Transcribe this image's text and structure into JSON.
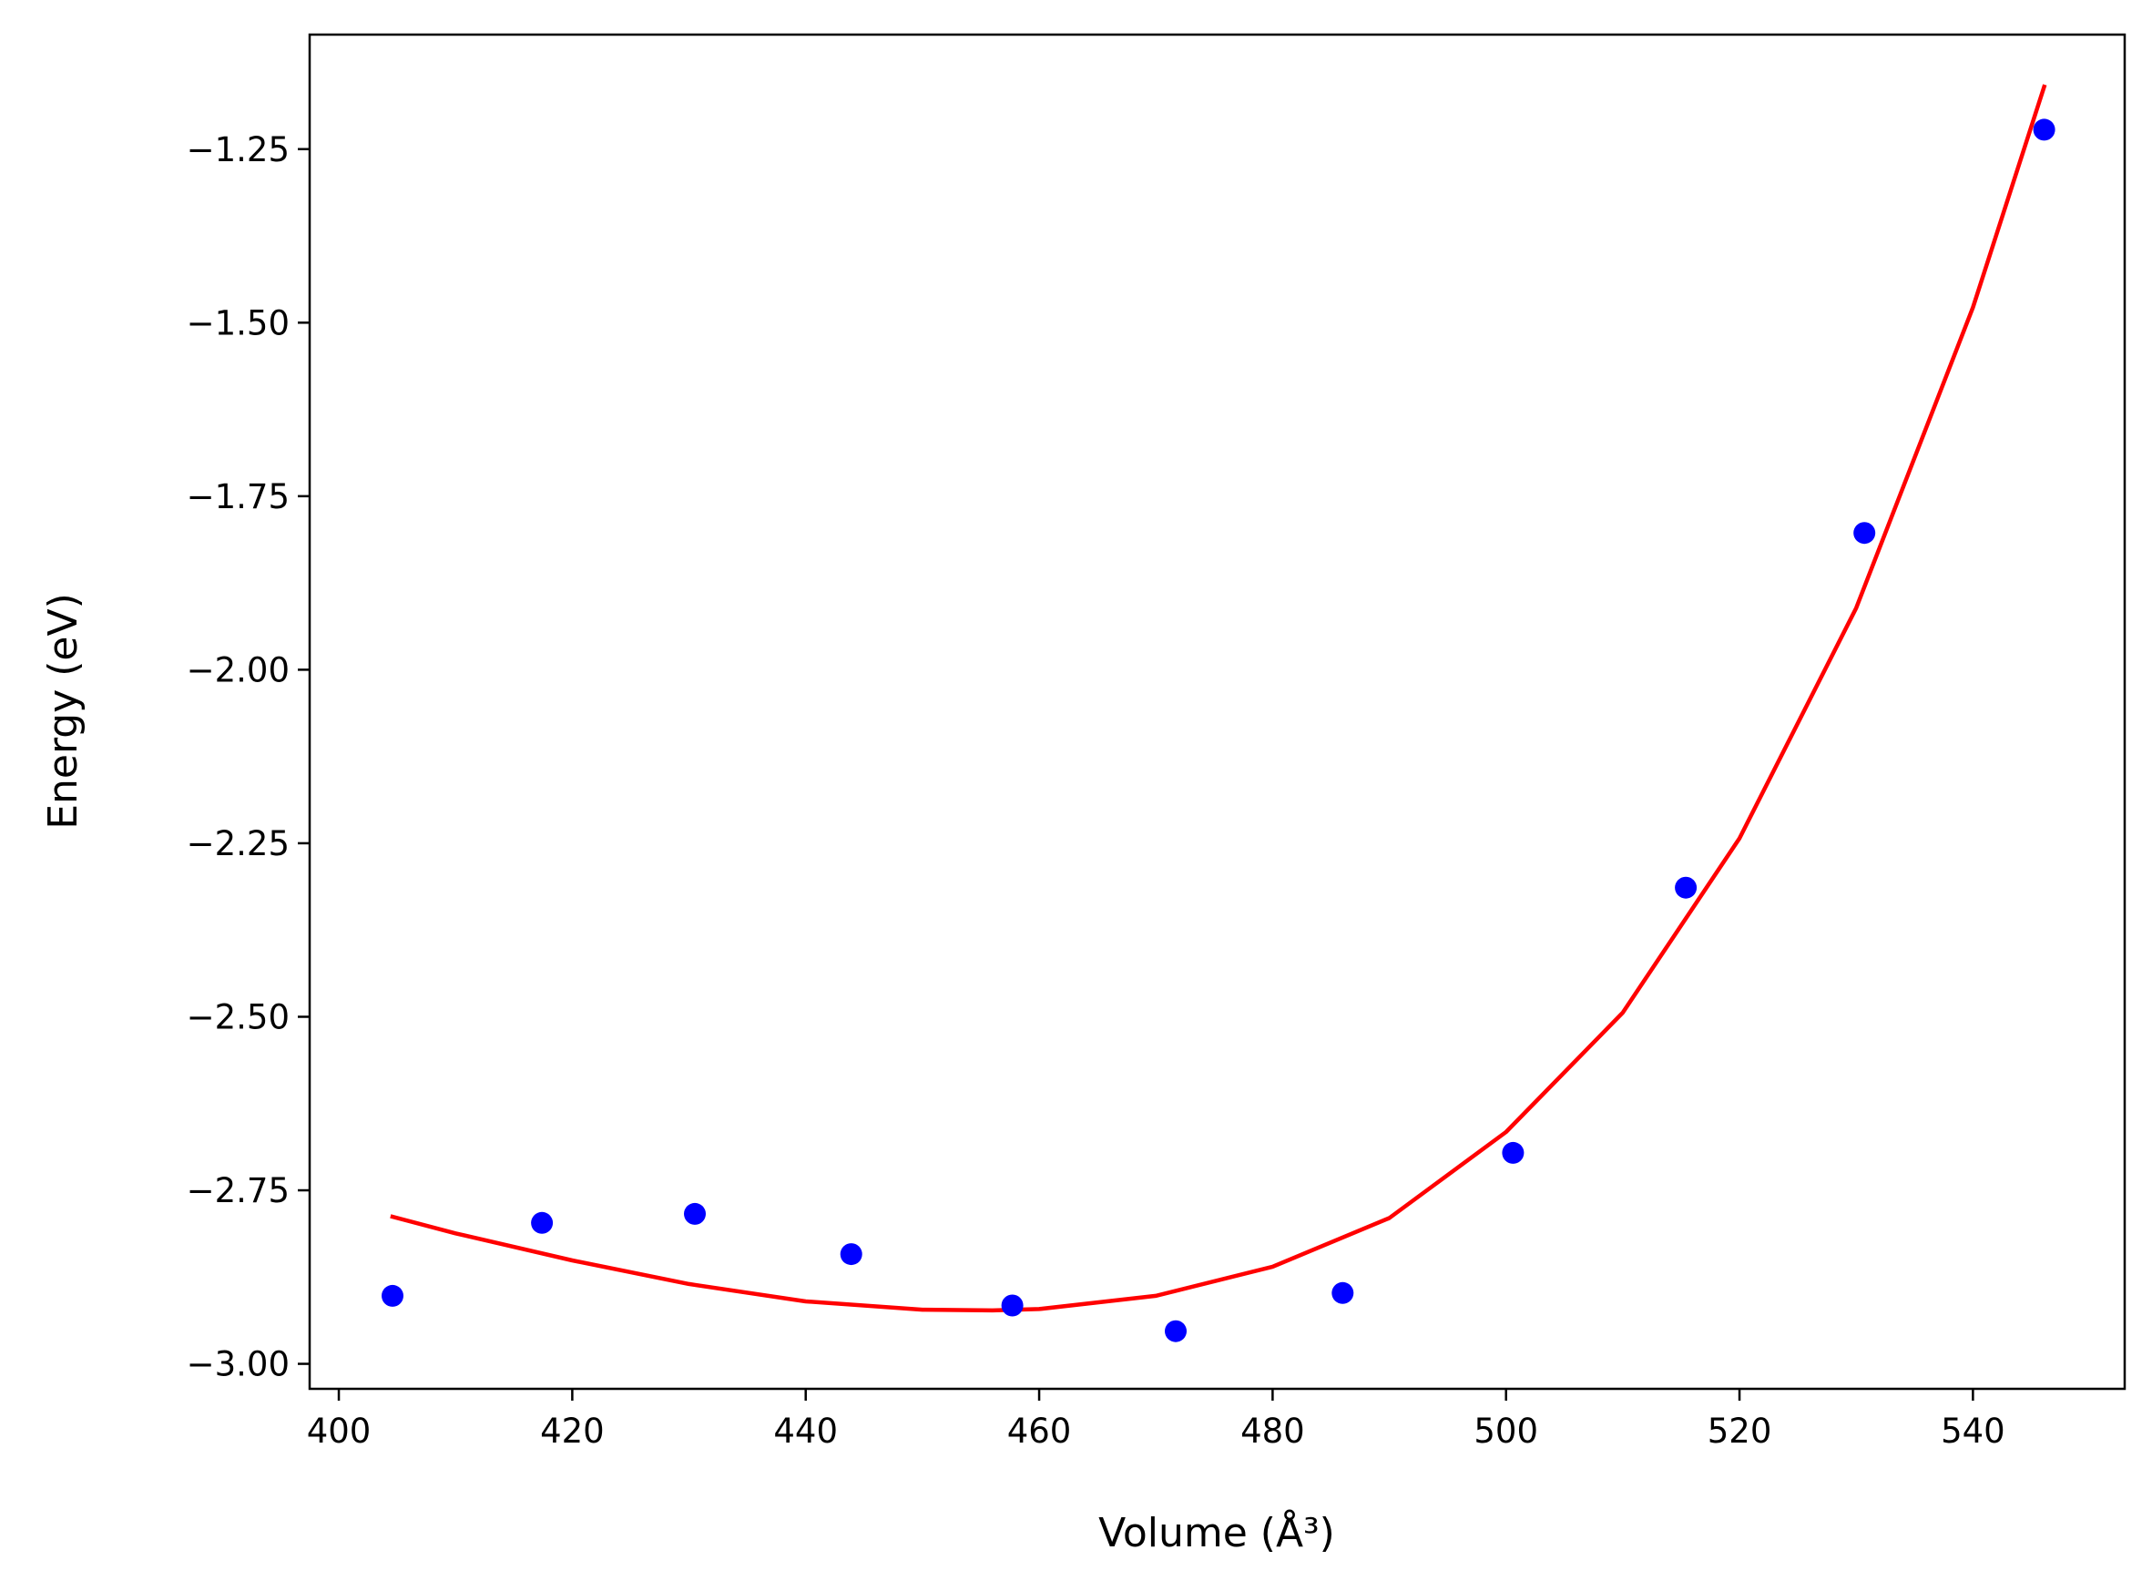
{
  "chart_data": {
    "type": "scatter",
    "title": "",
    "xlabel": "Volume (Å³)",
    "ylabel": "Energy (eV)",
    "xlim": [
      397.5,
      553.0
    ],
    "ylim": [
      -3.036,
      -1.085
    ],
    "x_ticks": [
      400,
      420,
      440,
      460,
      480,
      500,
      520,
      540
    ],
    "x_tick_labels": [
      "400",
      "420",
      "440",
      "460",
      "480",
      "500",
      "520",
      "540"
    ],
    "y_ticks": [
      -1.25,
      -1.5,
      -1.75,
      -2.0,
      -2.25,
      -2.5,
      -2.75,
      -3.0
    ],
    "y_tick_labels": [
      "−1.25",
      "−1.50",
      "−1.75",
      "−2.00",
      "−2.25",
      "−2.50",
      "−2.75",
      "−3.00"
    ],
    "grid": false,
    "legend": "none",
    "series": [
      {
        "kind": "scatter",
        "color": "#0000ff",
        "points": [
          {
            "x": 404.6,
            "y": -2.902
          },
          {
            "x": 417.4,
            "y": -2.797
          },
          {
            "x": 430.5,
            "y": -2.784
          },
          {
            "x": 443.9,
            "y": -2.842
          },
          {
            "x": 457.7,
            "y": -2.916
          },
          {
            "x": 471.7,
            "y": -2.953
          },
          {
            "x": 486.0,
            "y": -2.898
          },
          {
            "x": 500.6,
            "y": -2.696
          },
          {
            "x": 515.4,
            "y": -2.314
          },
          {
            "x": 530.7,
            "y": -1.803
          },
          {
            "x": 546.1,
            "y": -1.222
          }
        ]
      },
      {
        "kind": "line",
        "color": "#ff0000",
        "points": [
          {
            "x": 404.6,
            "y": -2.788
          },
          {
            "x": 410,
            "y": -2.812
          },
          {
            "x": 420,
            "y": -2.851
          },
          {
            "x": 430,
            "y": -2.885
          },
          {
            "x": 440,
            "y": -2.91
          },
          {
            "x": 450,
            "y": -2.922
          },
          {
            "x": 456,
            "y": -2.923
          },
          {
            "x": 460,
            "y": -2.921
          },
          {
            "x": 470,
            "y": -2.902
          },
          {
            "x": 480,
            "y": -2.86
          },
          {
            "x": 490,
            "y": -2.79
          },
          {
            "x": 500,
            "y": -2.666
          },
          {
            "x": 510,
            "y": -2.494
          },
          {
            "x": 520,
            "y": -2.243
          },
          {
            "x": 530,
            "y": -1.911
          },
          {
            "x": 540,
            "y": -1.478
          },
          {
            "x": 546.1,
            "y": -1.16
          }
        ]
      }
    ]
  }
}
